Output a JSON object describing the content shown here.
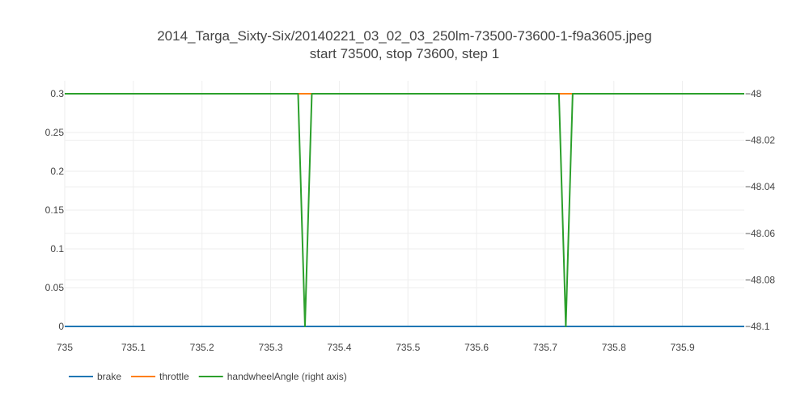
{
  "chart_data": {
    "type": "line",
    "title": "2014_Targa_Sixty-Six/20140221_03_02_03_250lm-73500-73600-1-f9a3605.jpeg",
    "subtitle": "start 73500, stop 73600, step 1",
    "xlim": [
      735,
      735.99
    ],
    "ylim_left": [
      0,
      0.3
    ],
    "ylim_right": [
      -48.1,
      -48
    ],
    "grid": true,
    "legend_position": "bottom-left",
    "x_tick_labels": [
      "735",
      "735.1",
      "735.2",
      "735.3",
      "735.4",
      "735.5",
      "735.6",
      "735.7",
      "735.8",
      "735.9"
    ],
    "y_left_tick_labels": [
      "0",
      "0.05",
      "0.1",
      "0.15",
      "0.2",
      "0.25",
      "0.3"
    ],
    "y_right_tick_labels": [
      "−48.1",
      "−48.08",
      "−48.06",
      "−48.04",
      "−48.02",
      "−48"
    ],
    "series": [
      {
        "name": "brake",
        "axis": "left",
        "color": "#1f77b4",
        "points": [
          [
            735,
            0
          ],
          [
            735.99,
            0
          ]
        ]
      },
      {
        "name": "throttle",
        "axis": "left",
        "color": "#ff7f0e",
        "points": [
          [
            735,
            0.3
          ],
          [
            735.99,
            0.3
          ]
        ]
      },
      {
        "name": "handwheelAngle (right axis)",
        "axis": "right",
        "color": "#2ca02c",
        "points": [
          [
            735,
            -48
          ],
          [
            735.34,
            -48
          ],
          [
            735.35,
            -48.1
          ],
          [
            735.36,
            -48
          ],
          [
            735.72,
            -48
          ],
          [
            735.73,
            -48.1
          ],
          [
            735.74,
            -48
          ],
          [
            735.99,
            -48
          ]
        ]
      }
    ]
  }
}
